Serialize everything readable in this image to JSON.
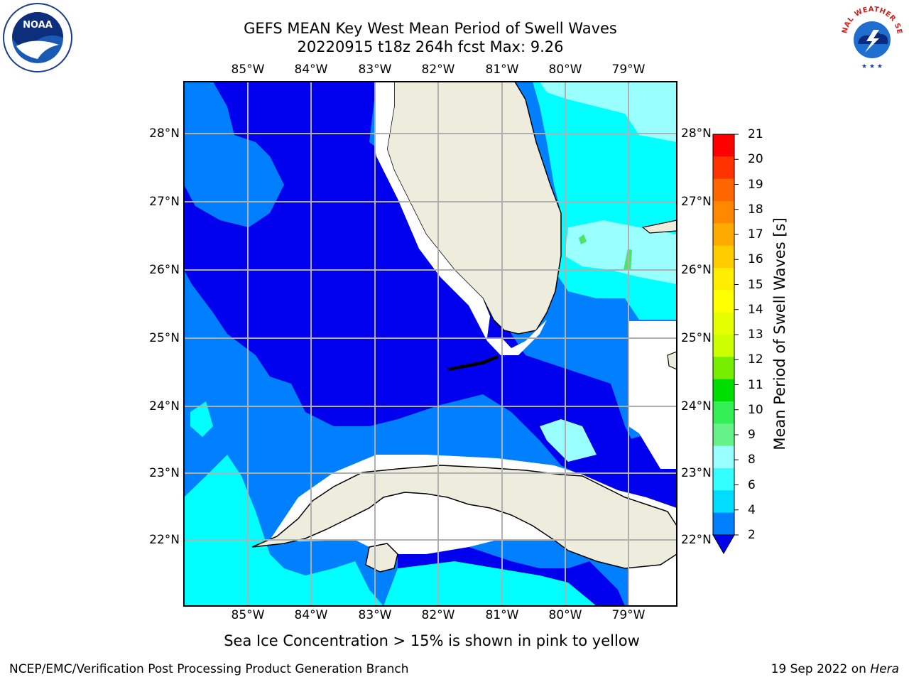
{
  "title": {
    "line1": "GEFS MEAN Key West Mean Period of Swell Waves",
    "line2": "20220915 t18z 264h fcst   Max: 9.26"
  },
  "map": {
    "lon_labels": [
      "85°W",
      "84°W",
      "83°W",
      "82°W",
      "81°W",
      "80°W",
      "79°W"
    ],
    "lat_labels": [
      "28°N",
      "27°N",
      "26°N",
      "25°N",
      "24°N",
      "23°N",
      "22°N"
    ],
    "colors": {
      "land": "#eeecdc",
      "level_2_4": "#0000ee",
      "level_4_6": "#0080ff",
      "level_6_8": "#00ffff",
      "level_8_9": "#99ffff",
      "level_9_10": "#4be36b",
      "masked": "#ffffff"
    }
  },
  "colorbar": {
    "ticks": [
      "21",
      "20",
      "19",
      "18",
      "17",
      "16",
      "15",
      "14",
      "13",
      "12",
      "11",
      "10",
      "9",
      "8",
      "6",
      "4",
      "2"
    ],
    "colors": [
      "#ff0000",
      "#ff3300",
      "#ff6600",
      "#ff8800",
      "#ffaa00",
      "#ffcc00",
      "#ffee00",
      "#ffff00",
      "#e6ff00",
      "#ccff00",
      "#77ee00",
      "#00dd00",
      "#33ee55",
      "#66f288",
      "#99ffff",
      "#33ffff",
      "#00ddff",
      "#0080ff"
    ],
    "label": "Mean Period of Swell Waves [s]"
  },
  "note": "Sea Ice Concentration > 15% is shown in pink to yellow",
  "footer": {
    "left": "NCEP/EMC/Verification Post Processing Product Generation Branch",
    "right_date": "19 Sep 2022 on ",
    "right_host": "Hera"
  },
  "logos": {
    "noaa_text": "NOAA",
    "nws_text": "NATIONAL WEATHER SERVICE"
  }
}
